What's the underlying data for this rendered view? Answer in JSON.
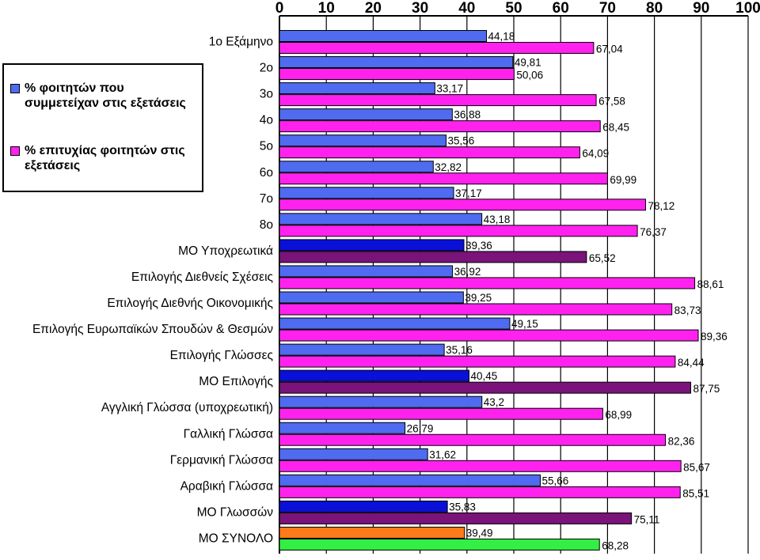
{
  "chart_data": {
    "type": "bar",
    "orientation": "horizontal",
    "xlim": [
      0,
      100
    ],
    "x_ticks": [
      "0",
      "10",
      "20",
      "30",
      "40",
      "50",
      "60",
      "70",
      "80",
      "90",
      "100"
    ],
    "grid": "vertical-lines-at-ticks",
    "legend_position": "left",
    "categories": [
      "1ο Εξάμηνο",
      "2ο",
      "3ο",
      "4ο",
      "5ο",
      "6ο",
      "7ο",
      "8ο",
      "ΜΟ Υποχρεωτικά",
      "Επιλογής Διεθνείς Σχέσεις",
      "Επιλογής Διεθνής Οικονομικής",
      "Επιλογής Ευρωπαϊκών Σπουδών & Θεσμών",
      "Επιλογής Γλώσσες",
      "ΜΟ Επιλογής",
      "Αγγλική Γλώσσα (υποχρεωτική)",
      "Γαλλική Γλώσσα",
      "Γερμανική Γλώσσα",
      "Αραβική Γλώσσα",
      "ΜΟ Γλωσσών",
      "ΜΟ ΣΥΝΟΛΟ"
    ],
    "series": [
      {
        "name": "% φοιτητών που συμμετείχαν στις εξετάσεις",
        "color": "#4F6BF0",
        "values": [
          44.18,
          49.81,
          33.17,
          36.88,
          35.56,
          32.82,
          37.17,
          43.18,
          39.36,
          36.92,
          39.25,
          49.15,
          35.16,
          40.45,
          43.2,
          26.79,
          31.62,
          55.66,
          35.83,
          39.49
        ],
        "labels": [
          "44,18",
          "49,81",
          "33,17",
          "36,88",
          "35,56",
          "32,82",
          "37,17",
          "43,18",
          "39,36",
          "36,92",
          "39,25",
          "49,15",
          "35,16",
          "40,45",
          "43,2",
          "26,79",
          "31,62",
          "55,66",
          "35,83",
          "39,49"
        ]
      },
      {
        "name": "% επιτυχίας φοιτητών στις εξετάσεις",
        "color": "#FF22EE",
        "values": [
          67.04,
          50.06,
          67.58,
          68.45,
          64.09,
          69.99,
          78.12,
          76.37,
          65.52,
          88.61,
          83.73,
          89.36,
          84.44,
          87.75,
          68.99,
          82.36,
          85.67,
          85.51,
          75.11,
          68.28
        ],
        "labels": [
          "67,04",
          "50,06",
          "67,58",
          "68,45",
          "64,09",
          "69,99",
          "78,12",
          "76,37",
          "65,52",
          "88,61",
          "83,73",
          "89,36",
          "84,44",
          "87,75",
          "68,99",
          "82,36",
          "85,67",
          "85,51",
          "75,11",
          "68,28"
        ]
      }
    ],
    "highlight_colors": {
      "average_participation": "#0A10D8",
      "average_success": "#7A137A",
      "total_participation": "#FF7A1A",
      "total_success": "#33EE44"
    },
    "average_rows": [
      "ΜΟ Υποχρεωτικά",
      "ΜΟ Επιλογής",
      "ΜΟ Γλωσσών"
    ],
    "total_row": "ΜΟ ΣΥΝΟΛΟ"
  }
}
